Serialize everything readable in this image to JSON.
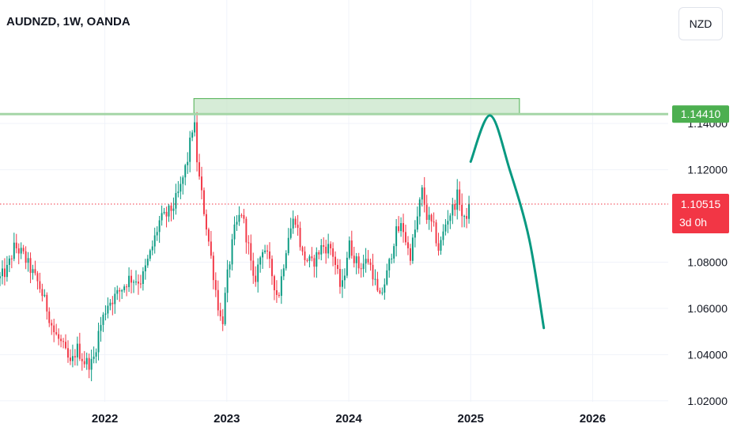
{
  "header": {
    "title": "AUDNZD, 1W, OANDA"
  },
  "toolbar": {
    "currency_label": "NZD"
  },
  "chart_data": {
    "type": "candlestick",
    "symbol": "AUDNZD",
    "interval": "1W",
    "source": "OANDA",
    "y_ticks": [
      "1.14000",
      "1.12000",
      "1.08000",
      "1.06000",
      "1.04000",
      "1.02000"
    ],
    "y_tick_values": [
      1.14,
      1.12,
      1.08,
      1.06,
      1.04,
      1.02
    ],
    "x_ticks": [
      "2022",
      "2023",
      "2024",
      "2025",
      "2026"
    ],
    "x_tick_values": [
      2022.0,
      2023.0,
      2024.0,
      2025.0,
      2026.0
    ],
    "ylim": [
      1.0165,
      1.1695
    ],
    "xlim": [
      2021.14,
      2026.62
    ],
    "grid": true,
    "resistance_level": {
      "value": 1.1441,
      "label": "1.14410",
      "color": "#4caf50"
    },
    "supply_zone": {
      "x_start": 2022.73,
      "x_end": 2025.4,
      "y_low": 1.1441,
      "y_high": 1.1508,
      "color": "#4caf50"
    },
    "current_price": {
      "value": 1.10515,
      "label": "1.10515",
      "countdown": "3d 0h",
      "color": "#f23645"
    },
    "projection_path": {
      "color": "#089981",
      "points": [
        [
          2025.0,
          1.1235
        ],
        [
          2025.16,
          1.1435
        ],
        [
          2025.32,
          1.12
        ],
        [
          2025.48,
          1.09
        ],
        [
          2025.6,
          1.0515
        ]
      ]
    },
    "candle_anchors": [
      [
        2021.14,
        1.073
      ],
      [
        2021.2,
        1.077
      ],
      [
        2021.26,
        1.087
      ],
      [
        2021.33,
        1.083
      ],
      [
        2021.4,
        1.076
      ],
      [
        2021.46,
        1.07
      ],
      [
        2021.52,
        1.061
      ],
      [
        2021.58,
        1.05
      ],
      [
        2021.65,
        1.044
      ],
      [
        2021.72,
        1.035
      ],
      [
        2021.77,
        1.043
      ],
      [
        2021.83,
        1.037
      ],
      [
        2021.9,
        1.036
      ],
      [
        2021.95,
        1.05
      ],
      [
        2022.02,
        1.062
      ],
      [
        2022.1,
        1.066
      ],
      [
        2022.2,
        1.073
      ],
      [
        2022.3,
        1.072
      ],
      [
        2022.38,
        1.085
      ],
      [
        2022.45,
        1.098
      ],
      [
        2022.5,
        1.1
      ],
      [
        2022.56,
        1.104
      ],
      [
        2022.62,
        1.112
      ],
      [
        2022.68,
        1.125
      ],
      [
        2022.73,
        1.1425
      ],
      [
        2022.76,
        1.121
      ],
      [
        2022.82,
        1.1
      ],
      [
        2022.86,
        1.086
      ],
      [
        2022.92,
        1.064
      ],
      [
        2022.96,
        1.052
      ],
      [
        2023.0,
        1.072
      ],
      [
        2023.06,
        1.093
      ],
      [
        2023.12,
        1.102
      ],
      [
        2023.18,
        1.086
      ],
      [
        2023.22,
        1.07
      ],
      [
        2023.3,
        1.088
      ],
      [
        2023.36,
        1.077
      ],
      [
        2023.42,
        1.064
      ],
      [
        2023.5,
        1.091
      ],
      [
        2023.56,
        1.1
      ],
      [
        2023.62,
        1.083
      ],
      [
        2023.7,
        1.079
      ],
      [
        2023.78,
        1.087
      ],
      [
        2023.86,
        1.086
      ],
      [
        2023.94,
        1.067
      ],
      [
        2024.0,
        1.088
      ],
      [
        2024.08,
        1.078
      ],
      [
        2024.16,
        1.081
      ],
      [
        2024.2,
        1.075
      ],
      [
        2024.25,
        1.063
      ],
      [
        2024.32,
        1.076
      ],
      [
        2024.38,
        1.092
      ],
      [
        2024.44,
        1.096
      ],
      [
        2024.5,
        1.082
      ],
      [
        2024.56,
        1.098
      ],
      [
        2024.6,
        1.111
      ],
      [
        2024.64,
        1.1
      ],
      [
        2024.7,
        1.094
      ],
      [
        2024.74,
        1.085
      ],
      [
        2024.8,
        1.098
      ],
      [
        2024.86,
        1.104
      ],
      [
        2024.9,
        1.11
      ],
      [
        2024.94,
        1.096
      ],
      [
        2024.99,
        1.1053
      ]
    ]
  }
}
